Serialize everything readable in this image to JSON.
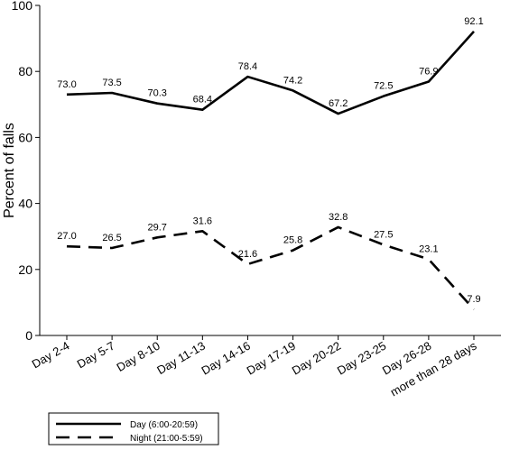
{
  "chart_data": {
    "type": "line",
    "title": "",
    "xlabel": "",
    "ylabel": "Percent of falls",
    "ylim": [
      0,
      100
    ],
    "yticks": [
      0,
      20,
      40,
      60,
      80,
      100
    ],
    "grid": false,
    "legend_position": "bottom-left (below chart)",
    "categories": [
      "Day 2-4",
      "Day 5-7",
      "Day 8-10",
      "Day 11-13",
      "Day 14-16",
      "Day 17-19",
      "Day 20-22",
      "Day 23-25",
      "Day 26-28",
      "more than 28 days"
    ],
    "series": [
      {
        "name": "Day (6:00-20:59)",
        "line_style": "solid",
        "color": "#000000",
        "values": [
          73.0,
          73.5,
          70.3,
          68.4,
          78.4,
          74.2,
          67.2,
          72.5,
          76.9,
          92.1
        ],
        "labels": [
          "73.0",
          "73.5",
          "70.3",
          "68.4",
          "78.4",
          "74.2",
          "67.2",
          "72.5",
          "76.9",
          "92.1"
        ]
      },
      {
        "name": "Night (21:00-5:59)",
        "line_style": "dashed",
        "color": "#000000",
        "values": [
          27.0,
          26.5,
          29.7,
          31.6,
          21.6,
          25.8,
          32.8,
          27.5,
          23.1,
          7.9
        ],
        "labels": [
          "27.0",
          "26.5",
          "29.7",
          "31.6",
          "21.6",
          "25.8",
          "32.8",
          "27.5",
          "23.1",
          "7.9"
        ]
      }
    ]
  }
}
